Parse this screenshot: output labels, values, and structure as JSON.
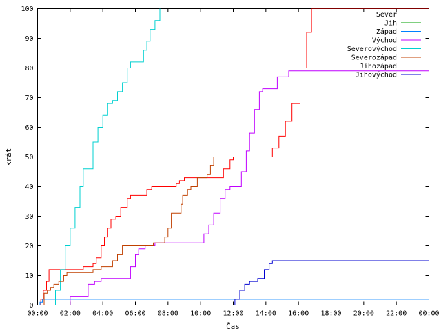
{
  "chart_data": {
    "type": "line",
    "xlabel": "Čas",
    "ylabel": "krát",
    "xlim": [
      0,
      24
    ],
    "ylim": [
      0,
      100
    ],
    "x_ticks": [
      {
        "value": 0,
        "label": "00:00"
      },
      {
        "value": 2,
        "label": "02:00"
      },
      {
        "value": 4,
        "label": "04:00"
      },
      {
        "value": 6,
        "label": "06:00"
      },
      {
        "value": 8,
        "label": "08:00"
      },
      {
        "value": 10,
        "label": "10:00"
      },
      {
        "value": 12,
        "label": "12:00"
      },
      {
        "value": 14,
        "label": "14:00"
      },
      {
        "value": 16,
        "label": "16:00"
      },
      {
        "value": 18,
        "label": "18:00"
      },
      {
        "value": 20,
        "label": "20:00"
      },
      {
        "value": 22,
        "label": "22:00"
      },
      {
        "value": 24,
        "label": "00:00"
      }
    ],
    "y_ticks": [
      0,
      10,
      20,
      30,
      40,
      50,
      60,
      70,
      80,
      90,
      100
    ],
    "grid": false,
    "legend_position": "top-right",
    "series": [
      {
        "name": "Sever",
        "color": "#ff0000",
        "points": [
          [
            0,
            0
          ],
          [
            0.2,
            2
          ],
          [
            0.35,
            5
          ],
          [
            0.55,
            8
          ],
          [
            0.7,
            12
          ],
          [
            1.2,
            12
          ],
          [
            2.0,
            12
          ],
          [
            2.8,
            13
          ],
          [
            3.4,
            14
          ],
          [
            3.6,
            16
          ],
          [
            3.9,
            20
          ],
          [
            4.1,
            23
          ],
          [
            4.3,
            26
          ],
          [
            4.5,
            29
          ],
          [
            4.8,
            30
          ],
          [
            5.1,
            33
          ],
          [
            5.5,
            36
          ],
          [
            5.7,
            37
          ],
          [
            6.3,
            37
          ],
          [
            6.7,
            39
          ],
          [
            7.0,
            40
          ],
          [
            8.0,
            40
          ],
          [
            8.5,
            41
          ],
          [
            8.7,
            42
          ],
          [
            9.0,
            43
          ],
          [
            11.0,
            43
          ],
          [
            11.4,
            46
          ],
          [
            11.8,
            49
          ],
          [
            12.0,
            50
          ],
          [
            13.0,
            50
          ],
          [
            14.1,
            50
          ],
          [
            14.4,
            53
          ],
          [
            14.8,
            57
          ],
          [
            15.2,
            62
          ],
          [
            15.6,
            68
          ],
          [
            16.1,
            80
          ],
          [
            16.5,
            92
          ],
          [
            16.8,
            100
          ],
          [
            24,
            100
          ]
        ]
      },
      {
        "name": "Jih",
        "color": "#00a000",
        "points": []
      },
      {
        "name": "Západ",
        "color": "#0080ff",
        "points": [
          [
            0,
            0
          ],
          [
            0.15,
            1
          ],
          [
            0.3,
            2
          ],
          [
            8.1,
            2
          ],
          [
            8.4,
            2
          ],
          [
            24,
            2
          ]
        ]
      },
      {
        "name": "Východ",
        "color": "#c000ff",
        "points": [
          [
            1.9,
            0
          ],
          [
            2.0,
            3
          ],
          [
            2.8,
            3
          ],
          [
            3.1,
            7
          ],
          [
            3.5,
            8
          ],
          [
            3.9,
            9
          ],
          [
            5.5,
            9
          ],
          [
            5.7,
            13
          ],
          [
            6.0,
            17
          ],
          [
            6.2,
            19
          ],
          [
            6.6,
            20
          ],
          [
            7.2,
            21
          ],
          [
            9.9,
            21
          ],
          [
            10.2,
            24
          ],
          [
            10.5,
            27
          ],
          [
            10.8,
            31
          ],
          [
            11.2,
            36
          ],
          [
            11.5,
            39
          ],
          [
            11.8,
            40
          ],
          [
            12.2,
            40
          ],
          [
            12.5,
            45
          ],
          [
            12.8,
            52
          ],
          [
            13.0,
            58
          ],
          [
            13.3,
            66
          ],
          [
            13.6,
            72
          ],
          [
            13.8,
            73
          ],
          [
            14.4,
            73
          ],
          [
            14.7,
            77
          ],
          [
            15.0,
            77
          ],
          [
            15.4,
            79
          ],
          [
            17.5,
            79
          ],
          [
            24,
            79
          ]
        ]
      },
      {
        "name": "Severovýchod",
        "color": "#00d0d0",
        "points": [
          [
            0.9,
            0
          ],
          [
            1.1,
            5
          ],
          [
            1.4,
            12
          ],
          [
            1.7,
            20
          ],
          [
            2.0,
            26
          ],
          [
            2.3,
            33
          ],
          [
            2.6,
            40
          ],
          [
            2.8,
            46
          ],
          [
            3.1,
            46
          ],
          [
            3.4,
            55
          ],
          [
            3.7,
            60
          ],
          [
            4.0,
            64
          ],
          [
            4.3,
            68
          ],
          [
            4.6,
            69
          ],
          [
            4.9,
            72
          ],
          [
            5.2,
            75
          ],
          [
            5.5,
            80
          ],
          [
            5.7,
            82
          ],
          [
            6.2,
            82
          ],
          [
            6.5,
            86
          ],
          [
            6.7,
            89
          ],
          [
            6.9,
            93
          ],
          [
            7.2,
            96
          ],
          [
            7.5,
            100
          ]
        ]
      },
      {
        "name": "Severozápad",
        "color": "#c04000",
        "points": [
          [
            0,
            0
          ],
          [
            0.3,
            0
          ],
          [
            0.4,
            4
          ],
          [
            0.6,
            5
          ],
          [
            0.8,
            6
          ],
          [
            1.0,
            7
          ],
          [
            1.3,
            8
          ],
          [
            1.6,
            10
          ],
          [
            1.8,
            11
          ],
          [
            3.0,
            11
          ],
          [
            3.4,
            12
          ],
          [
            3.9,
            13
          ],
          [
            4.6,
            15
          ],
          [
            4.9,
            17
          ],
          [
            5.2,
            20
          ],
          [
            6.8,
            20
          ],
          [
            7.1,
            21
          ],
          [
            7.8,
            23
          ],
          [
            8.0,
            26
          ],
          [
            8.2,
            31
          ],
          [
            8.5,
            31
          ],
          [
            8.8,
            34
          ],
          [
            8.9,
            37
          ],
          [
            9.2,
            39
          ],
          [
            9.4,
            40
          ],
          [
            9.8,
            43
          ],
          [
            10.4,
            44
          ],
          [
            10.6,
            47
          ],
          [
            10.8,
            50
          ],
          [
            24,
            50
          ]
        ]
      },
      {
        "name": "Jihozápad",
        "color": "#ffc000",
        "points": []
      },
      {
        "name": "Jihovýchod",
        "color": "#0000d0",
        "points": [
          [
            11.9,
            0
          ],
          [
            12.1,
            2
          ],
          [
            12.4,
            5
          ],
          [
            12.7,
            7
          ],
          [
            13.0,
            8
          ],
          [
            13.5,
            9
          ],
          [
            13.9,
            12
          ],
          [
            14.2,
            14
          ],
          [
            14.4,
            15
          ],
          [
            24,
            15
          ]
        ]
      }
    ]
  }
}
